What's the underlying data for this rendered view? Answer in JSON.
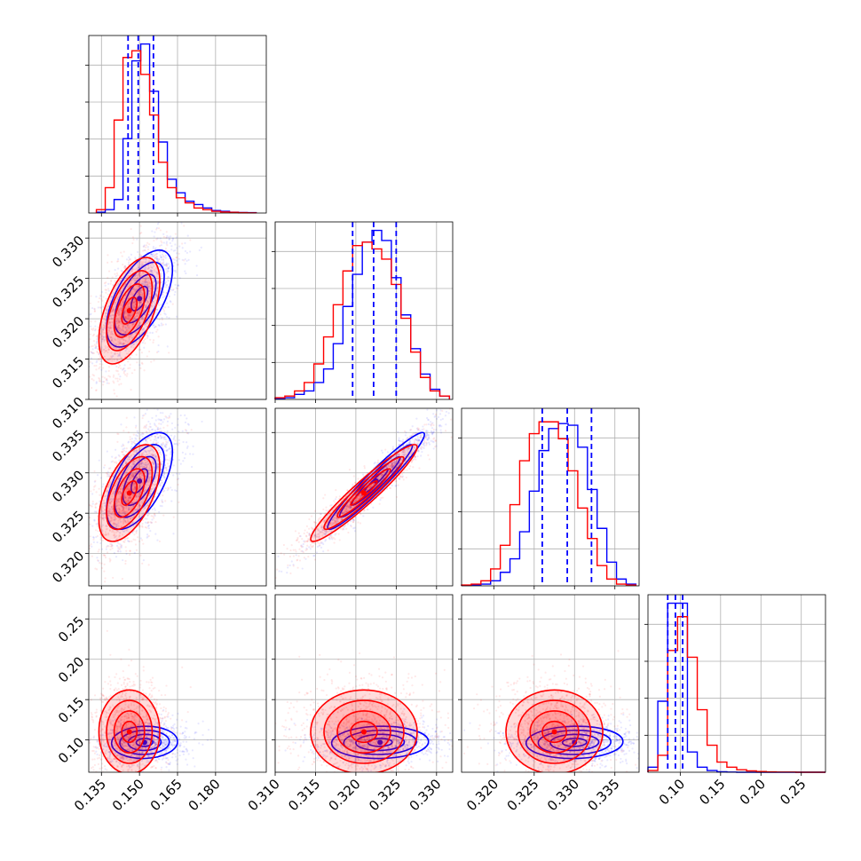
{
  "chart_data": {
    "type": "corner",
    "title": "",
    "n_params": 4,
    "grid": true,
    "colors": {
      "blue": "#0000ff",
      "red": "#ff0000",
      "grid": "#b0b0b0",
      "frame": "#000000"
    },
    "params": [
      {
        "index": 0,
        "range": [
          0.13,
          0.2
        ],
        "tick_labels": [
          "0.135",
          "0.150",
          "0.165",
          "0.180"
        ],
        "tick_values": [
          0.135,
          0.15,
          0.165,
          0.18
        ]
      },
      {
        "index": 1,
        "range": [
          0.31,
          0.332
        ],
        "tick_labels": [
          "0.310",
          "0.315",
          "0.320",
          "0.325",
          "0.330"
        ],
        "tick_values": [
          0.31,
          0.315,
          0.32,
          0.325,
          0.33
        ]
      },
      {
        "index": 2,
        "range": [
          0.316,
          0.338
        ],
        "tick_labels": [
          "0.320",
          "0.325",
          "0.330",
          "0.335"
        ],
        "tick_values": [
          0.32,
          0.325,
          0.33,
          0.335
        ]
      },
      {
        "index": 3,
        "range": [
          0.06,
          0.28
        ],
        "tick_labels": [
          "0.10",
          "0.15",
          "0.20",
          "0.25"
        ],
        "tick_values": [
          0.1,
          0.15,
          0.2,
          0.25
        ]
      }
    ],
    "marginals": [
      {
        "param": 0,
        "bins": [
          0.133,
          0.1365,
          0.14,
          0.1435,
          0.147,
          0.1505,
          0.154,
          0.1575,
          0.161,
          0.1645,
          0.168,
          0.1715,
          0.175,
          0.1785,
          0.182,
          0.1855,
          0.189,
          0.1925,
          0.196
        ],
        "series": [
          {
            "name": "blue",
            "counts": [
              0.5,
              2,
              8,
              44,
              90,
              100,
              72,
              42,
              20,
              12,
              7,
              5,
              3,
              1.5,
              1,
              0.5,
              0.3,
              0.2
            ]
          },
          {
            "name": "red",
            "counts": [
              2,
              15,
              55,
              92,
              96,
              82,
              58,
              30,
              15,
              9,
              6,
              3,
              2,
              1,
              0.6,
              0.4,
              0.2,
              0.1
            ]
          }
        ],
        "quantiles": [
          0.1455,
          0.1495,
          0.1555
        ]
      },
      {
        "param": 1,
        "bins": [
          0.31,
          0.3112,
          0.3124,
          0.3136,
          0.3148,
          0.316,
          0.3172,
          0.3184,
          0.3196,
          0.3208,
          0.322,
          0.3232,
          0.3244,
          0.3256,
          0.3268,
          0.328,
          0.3292,
          0.3304,
          0.3316
        ],
        "series": [
          {
            "name": "blue",
            "counts": [
              0.5,
              1,
              3,
              5,
              10,
              18,
              33,
              55,
              74,
              93,
              100,
              94,
              72,
              50,
              30,
              15,
              6,
              2
            ]
          },
          {
            "name": "red",
            "counts": [
              1,
              2,
              5,
              10,
              21,
              37,
              56,
              76,
              91,
              93,
              89,
              83,
              68,
              48,
              28,
              13,
              5,
              2
            ]
          }
        ],
        "quantiles": [
          0.3196,
          0.3222,
          0.325
        ]
      },
      {
        "param": 2,
        "bins": [
          0.316,
          0.3172,
          0.3184,
          0.3196,
          0.3208,
          0.322,
          0.3232,
          0.3244,
          0.3256,
          0.3268,
          0.328,
          0.3292,
          0.3304,
          0.3316,
          0.3328,
          0.334,
          0.3352,
          0.3364,
          0.3376
        ],
        "series": [
          {
            "name": "blue",
            "counts": [
              0.3,
              0.5,
              1,
              3,
              8,
              16,
              32,
              56,
              80,
              93,
              96,
              95,
              82,
              57,
              34,
              14,
              4,
              1
            ]
          },
          {
            "name": "red",
            "counts": [
              0.5,
              1,
              3,
              10,
              24,
              48,
              74,
              90,
              97,
              97,
              87,
              68,
              46,
              28,
              12,
              4,
              1,
              0.5
            ]
          }
        ],
        "quantiles": [
          0.326,
          0.3291,
          0.3321
        ]
      },
      {
        "param": 3,
        "bins": [
          0.06,
          0.0722,
          0.0844,
          0.0967,
          0.1089,
          0.1211,
          0.1333,
          0.1456,
          0.1578,
          0.17,
          0.1822,
          0.1944,
          0.2067,
          0.2189,
          0.2311,
          0.2433,
          0.2556,
          0.2678,
          0.28
        ],
        "series": [
          {
            "name": "blue",
            "counts": [
              3,
              42,
              100,
              100,
              12,
              3,
              1,
              0.3,
              0.1,
              0,
              0,
              0,
              0,
              0,
              0,
              0,
              0,
              0
            ]
          },
          {
            "name": "red",
            "counts": [
              1,
              10,
              72,
              92,
              68,
              37,
              16,
              6,
              3,
              1.5,
              0.8,
              0.4,
              0.2,
              0.1,
              0.1,
              0,
              0,
              0
            ]
          }
        ],
        "quantiles": [
          0.0845,
          0.094,
          0.103
        ]
      }
    ],
    "pairs": [
      {
        "x": 0,
        "y": 1,
        "blue": {
          "mean": [
            0.15,
            0.3225
          ],
          "sd": [
            0.0065,
            0.003
          ],
          "rho": 0.6,
          "n": 1100
        },
        "red": {
          "mean": [
            0.146,
            0.321
          ],
          "sd": [
            0.006,
            0.0033
          ],
          "rho": 0.55,
          "n": 1100
        }
      },
      {
        "x": 0,
        "y": 2,
        "blue": {
          "mean": [
            0.15,
            0.329
          ],
          "sd": [
            0.0065,
            0.003
          ],
          "rho": 0.6,
          "n": 1100
        },
        "red": {
          "mean": [
            0.146,
            0.3275
          ],
          "sd": [
            0.006,
            0.003
          ],
          "rho": 0.55,
          "n": 1100
        }
      },
      {
        "x": 1,
        "y": 2,
        "blue": {
          "mean": [
            0.3225,
            0.329
          ],
          "sd": [
            0.003,
            0.003
          ],
          "rho": 0.96,
          "n": 1100
        },
        "red": {
          "mean": [
            0.321,
            0.3275
          ],
          "sd": [
            0.0033,
            0.003
          ],
          "rho": 0.95,
          "n": 1100
        }
      },
      {
        "x": 0,
        "y": 3,
        "blue": {
          "mean": [
            0.152,
            0.097
          ],
          "sd": [
            0.0065,
            0.01
          ],
          "rho": 0.05,
          "n": 1100
        },
        "red": {
          "mean": [
            0.146,
            0.11
          ],
          "sd": [
            0.006,
            0.026
          ],
          "rho": 0.0,
          "n": 1100
        }
      },
      {
        "x": 1,
        "y": 3,
        "blue": {
          "mean": [
            0.323,
            0.097
          ],
          "sd": [
            0.003,
            0.01
          ],
          "rho": 0.05,
          "n": 1100
        },
        "red": {
          "mean": [
            0.321,
            0.11
          ],
          "sd": [
            0.0033,
            0.026
          ],
          "rho": 0.0,
          "n": 1100
        }
      },
      {
        "x": 2,
        "y": 3,
        "blue": {
          "mean": [
            0.33,
            0.097
          ],
          "sd": [
            0.003,
            0.01
          ],
          "rho": 0.05,
          "n": 1100
        },
        "red": {
          "mean": [
            0.3275,
            0.11
          ],
          "sd": [
            0.003,
            0.026
          ],
          "rho": 0.0,
          "n": 1100
        }
      }
    ],
    "contour_levels_sigma": [
      0.5,
      1.0,
      1.5,
      2.0
    ]
  }
}
